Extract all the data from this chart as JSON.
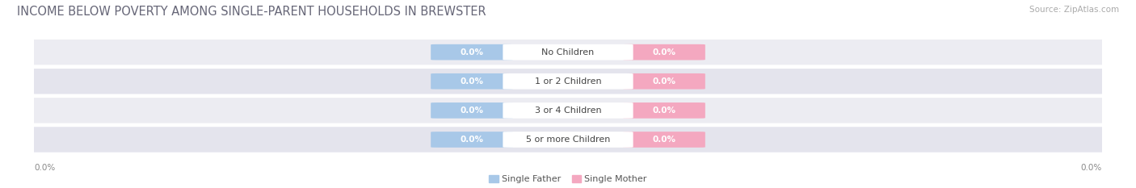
{
  "title": "INCOME BELOW POVERTY AMONG SINGLE-PARENT HOUSEHOLDS IN BREWSTER",
  "source": "Source: ZipAtlas.com",
  "categories": [
    "No Children",
    "1 or 2 Children",
    "3 or 4 Children",
    "5 or more Children"
  ],
  "single_father_values": [
    "0.0%",
    "0.0%",
    "0.0%",
    "0.0%"
  ],
  "single_mother_values": [
    "0.0%",
    "0.0%",
    "0.0%",
    "0.0%"
  ],
  "father_color": "#a8c8e8",
  "mother_color": "#f4a8c0",
  "row_bg_color_odd": "#ececf2",
  "row_bg_color_even": "#e4e4ed",
  "label_box_color": "#ffffff",
  "title_color": "#666677",
  "source_color": "#aaaaaa",
  "value_text_color": "#ffffff",
  "category_text_color": "#444444",
  "axis_tick_color": "#888888",
  "legend_text_color": "#555555",
  "title_fontsize": 10.5,
  "source_fontsize": 7.5,
  "cat_fontsize": 8,
  "val_fontsize": 7.5,
  "legend_fontsize": 8,
  "tick_fontsize": 7.5,
  "axis_label_value": "0.0%",
  "legend_father_label": "Single Father",
  "legend_mother_label": "Single Mother",
  "fig_width": 14.06,
  "fig_height": 2.33,
  "background_color": "#ffffff"
}
